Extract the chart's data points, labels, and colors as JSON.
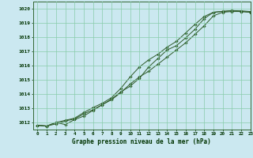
{
  "xlabel": "Graphe pression niveau de la mer (hPa)",
  "background_color": "#cbe8f0",
  "grid_color": "#88ccaa",
  "line_color": "#2d5a27",
  "xlim": [
    -0.5,
    23
  ],
  "ylim": [
    1011.5,
    1020.5
  ],
  "xticks": [
    0,
    1,
    2,
    3,
    4,
    5,
    6,
    7,
    8,
    9,
    10,
    11,
    12,
    13,
    14,
    15,
    16,
    17,
    18,
    19,
    20,
    21,
    22,
    23
  ],
  "yticks": [
    1012,
    1013,
    1014,
    1015,
    1016,
    1017,
    1018,
    1019,
    1020
  ],
  "line1_x": [
    0,
    1,
    2,
    3,
    4,
    5,
    6,
    7,
    8,
    9,
    10,
    11,
    12,
    13,
    14,
    15,
    16,
    17,
    18,
    19,
    20,
    21,
    22,
    23
  ],
  "line1_y": [
    1011.8,
    1011.75,
    1011.9,
    1012.1,
    1012.25,
    1012.6,
    1012.9,
    1013.25,
    1013.6,
    1014.1,
    1014.7,
    1015.2,
    1015.6,
    1016.1,
    1016.6,
    1017.1,
    1017.6,
    1018.2,
    1018.8,
    1019.5,
    1019.75,
    1019.8,
    1019.8,
    1019.75
  ],
  "line2_x": [
    0,
    1,
    2,
    3,
    4,
    5,
    6,
    7,
    8,
    9,
    10,
    11,
    12,
    13,
    14,
    15,
    16,
    17,
    18,
    19,
    20,
    21,
    22,
    23
  ],
  "line2_y": [
    1011.8,
    1011.75,
    1012.0,
    1011.85,
    1012.2,
    1012.45,
    1012.85,
    1013.25,
    1013.65,
    1014.15,
    1014.55,
    1015.1,
    1015.9,
    1016.5,
    1017.1,
    1017.4,
    1017.95,
    1018.55,
    1019.3,
    1019.75,
    1019.8,
    1019.85,
    1019.8,
    1019.75
  ],
  "line3_x": [
    0,
    1,
    2,
    3,
    4,
    5,
    6,
    7,
    8,
    9,
    10,
    11,
    12,
    13,
    14,
    15,
    16,
    17,
    18,
    19,
    20,
    21,
    22,
    23
  ],
  "line3_y": [
    1011.8,
    1011.75,
    1012.0,
    1012.15,
    1012.3,
    1012.7,
    1013.05,
    1013.35,
    1013.75,
    1014.4,
    1015.2,
    1015.9,
    1016.4,
    1016.8,
    1017.3,
    1017.7,
    1018.3,
    1018.9,
    1019.45,
    1019.75,
    1019.82,
    1019.87,
    1019.85,
    1019.8
  ]
}
